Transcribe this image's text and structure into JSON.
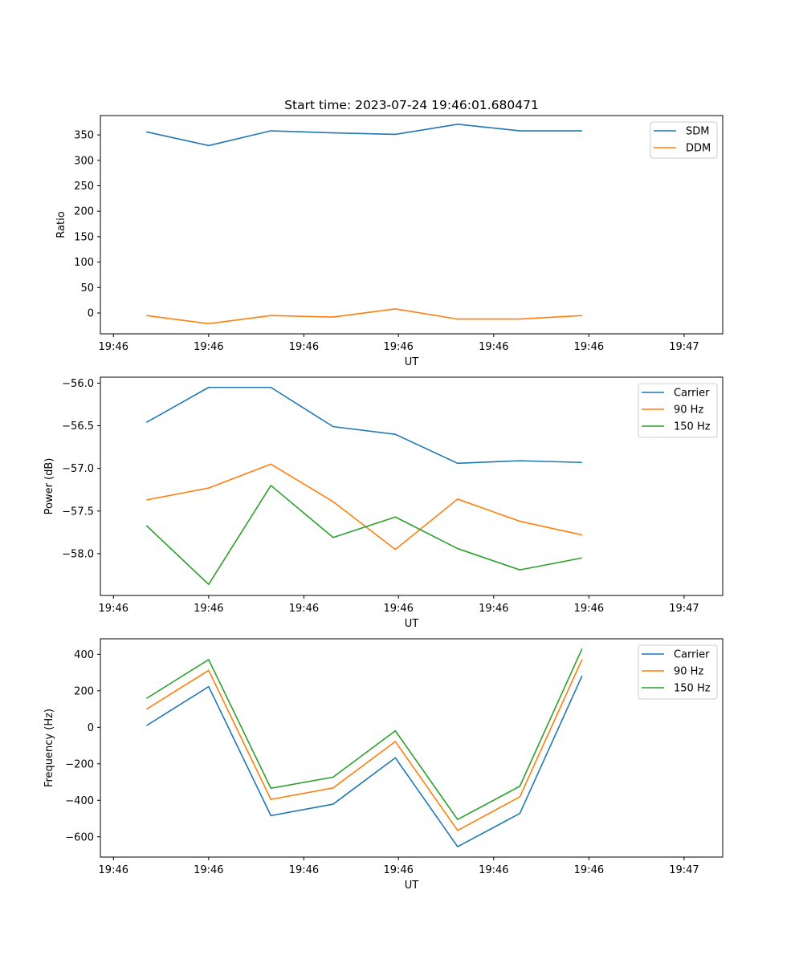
{
  "figure": {
    "title": "Start time: 2023-07-24 19:46:01.680471"
  },
  "colors": {
    "blue": "#1f77b4",
    "orange": "#ff7f0e",
    "green": "#2ca02c"
  },
  "chart_data": [
    {
      "type": "line",
      "title": "Start time: 2023-07-24 19:46:01.680471",
      "xlabel": "UT",
      "ylabel": "Ratio",
      "x_tick_labels": [
        "19:46",
        "19:46",
        "19:46",
        "19:46",
        "19:46",
        "19:46",
        "19:47"
      ],
      "x_index_range": [
        -0.74,
        9.26
      ],
      "x_tick_positions": [
        -0.53,
        1.0,
        2.53,
        4.05,
        5.58,
        7.11,
        8.64
      ],
      "y_ticks": [
        0,
        50,
        100,
        150,
        200,
        250,
        300,
        350
      ],
      "ylim": [
        -41,
        388
      ],
      "grid": false,
      "legend_position": "top-right",
      "x": [
        0,
        1,
        2,
        3,
        4,
        5,
        6,
        7
      ],
      "series": [
        {
          "name": "SDM",
          "color": "#1f77b4",
          "values": [
            356,
            329,
            358,
            354,
            351,
            371,
            358,
            358
          ]
        },
        {
          "name": "DDM",
          "color": "#ff7f0e",
          "values": [
            -5,
            -21,
            -5,
            -8,
            8,
            -12,
            -12,
            -5
          ]
        }
      ]
    },
    {
      "type": "line",
      "title": "",
      "xlabel": "UT",
      "ylabel": "Power (dB)",
      "x_tick_labels": [
        "19:46",
        "19:46",
        "19:46",
        "19:46",
        "19:46",
        "19:46",
        "19:47"
      ],
      "x_index_range": [
        -0.74,
        9.26
      ],
      "x_tick_positions": [
        -0.53,
        1.0,
        2.53,
        4.05,
        5.58,
        7.11,
        8.64
      ],
      "y_ticks": [
        -56.0,
        -56.5,
        -57.0,
        -57.5,
        -58.0
      ],
      "y_tick_labels": [
        "−56.0",
        "−56.5",
        "−57.0",
        "−57.5",
        "−58.0"
      ],
      "ylim": [
        -58.49,
        -55.93
      ],
      "grid": false,
      "legend_position": "top-right",
      "x": [
        0,
        1,
        2,
        3,
        4,
        5,
        6,
        7
      ],
      "series": [
        {
          "name": "Carrier",
          "color": "#1f77b4",
          "values": [
            -56.46,
            -56.05,
            -56.05,
            -56.51,
            -56.6,
            -56.94,
            -56.91,
            -56.93
          ]
        },
        {
          "name": "90 Hz",
          "color": "#ff7f0e",
          "values": [
            -57.37,
            -57.23,
            -56.95,
            -57.39,
            -57.95,
            -57.36,
            -57.62,
            -57.78
          ]
        },
        {
          "name": "150 Hz",
          "color": "#2ca02c",
          "values": [
            -57.67,
            -58.36,
            -57.2,
            -57.81,
            -57.57,
            -57.94,
            -58.19,
            -58.05
          ]
        }
      ]
    },
    {
      "type": "line",
      "title": "",
      "xlabel": "UT",
      "ylabel": "Frequency (Hz)",
      "x_tick_labels": [
        "19:46",
        "19:46",
        "19:46",
        "19:46",
        "19:46",
        "19:46",
        "19:47"
      ],
      "x_index_range": [
        -0.74,
        9.26
      ],
      "x_tick_positions": [
        -0.53,
        1.0,
        2.53,
        4.05,
        5.58,
        7.11,
        8.64
      ],
      "y_ticks": [
        400,
        200,
        0,
        -200,
        -400,
        -600
      ],
      "y_tick_labels": [
        "400",
        "200",
        "0",
        "−200",
        "−400",
        "−600"
      ],
      "ylim": [
        -711,
        485
      ],
      "grid": false,
      "legend_position": "top-right",
      "x": [
        0,
        1,
        2,
        3,
        4,
        5,
        6,
        7
      ],
      "series": [
        {
          "name": "Carrier",
          "color": "#1f77b4",
          "values": [
            9,
            223,
            -484,
            -421,
            -167,
            -654,
            -472,
            282
          ]
        },
        {
          "name": "90 Hz",
          "color": "#ff7f0e",
          "values": [
            99,
            312,
            -395,
            -332,
            -78,
            -565,
            -381,
            372
          ]
        },
        {
          "name": "150 Hz",
          "color": "#2ca02c",
          "values": [
            158,
            371,
            -334,
            -273,
            -19,
            -505,
            -323,
            431
          ]
        }
      ]
    }
  ]
}
